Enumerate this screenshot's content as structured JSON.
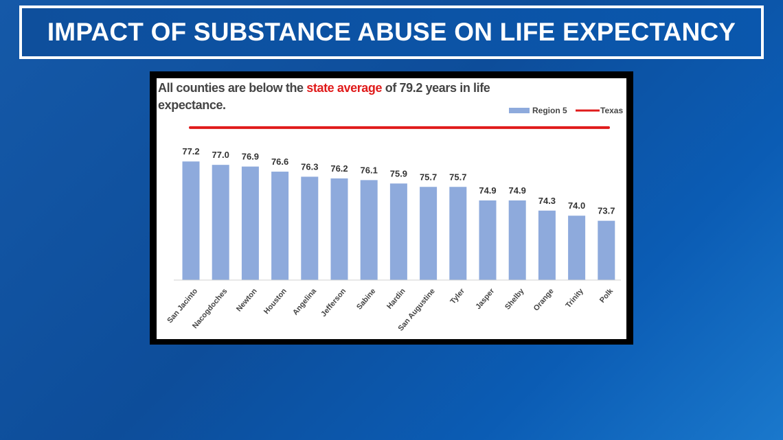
{
  "banner": {
    "title": "IMPACT OF SUBSTANCE ABUSE ON LIFE EXPECTANCY"
  },
  "colors": {
    "bar": "#8eaadc",
    "texas_line": "#e01b1b",
    "highlight": "#e01b1b"
  },
  "chart_data": {
    "type": "bar",
    "title_parts": {
      "before": "All counties are below the ",
      "highlight": "state average",
      "after": " of 79.2 years in life expectance."
    },
    "categories": [
      "San Jacinto",
      "Nacogdoches",
      "Newton",
      "Houston",
      "Angelina",
      "Jefferson",
      "Sabine",
      "Hardin",
      "San Augustine",
      "Tyler",
      "Jasper",
      "Shelby",
      "Orange",
      "Trinity",
      "Polk"
    ],
    "series": [
      {
        "name": "Region 5",
        "type": "bar",
        "values": [
          77.2,
          77.0,
          76.9,
          76.6,
          76.3,
          76.2,
          76.1,
          75.9,
          75.7,
          75.7,
          74.9,
          74.9,
          74.3,
          74.0,
          73.7
        ]
      },
      {
        "name": "Texas",
        "type": "line",
        "value": 79.2
      }
    ],
    "data_labels": [
      "77.2",
      "77.0",
      "76.9",
      "76.6",
      "76.3",
      "76.2",
      "76.1",
      "75.9",
      "75.7",
      "75.7",
      "74.9",
      "74.9",
      "74.3",
      "74.0",
      "73.7"
    ],
    "ylim": [
      70.2,
      79.6
    ],
    "legend": {
      "position": "top-right",
      "items": [
        "Region 5",
        "Texas"
      ]
    }
  }
}
